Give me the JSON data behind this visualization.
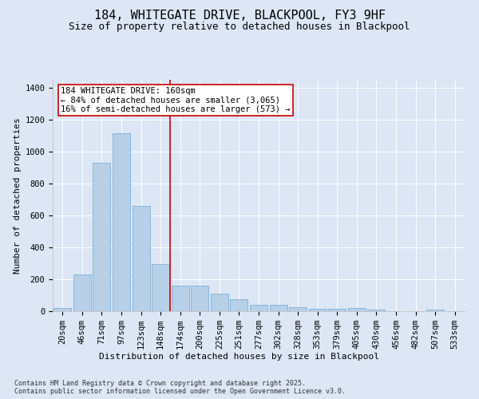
{
  "title": "184, WHITEGATE DRIVE, BLACKPOOL, FY3 9HF",
  "subtitle": "Size of property relative to detached houses in Blackpool",
  "xlabel": "Distribution of detached houses by size in Blackpool",
  "ylabel": "Number of detached properties",
  "categories": [
    "20sqm",
    "46sqm",
    "71sqm",
    "97sqm",
    "123sqm",
    "148sqm",
    "174sqm",
    "200sqm",
    "225sqm",
    "251sqm",
    "277sqm",
    "302sqm",
    "328sqm",
    "353sqm",
    "379sqm",
    "405sqm",
    "430sqm",
    "456sqm",
    "482sqm",
    "507sqm",
    "533sqm"
  ],
  "values": [
    18,
    230,
    930,
    1115,
    660,
    295,
    160,
    158,
    110,
    75,
    42,
    42,
    26,
    15,
    14,
    22,
    10,
    0,
    0,
    8,
    0
  ],
  "bar_color": "#b8cfe8",
  "bar_edge_color": "#6fa8d0",
  "vline_x_index": 5.5,
  "vline_color": "#cc0000",
  "annotation_text": "184 WHITEGATE DRIVE: 160sqm\n← 84% of detached houses are smaller (3,065)\n16% of semi-detached houses are larger (573) →",
  "annotation_box_color": "#ffffff",
  "annotation_box_edge_color": "#cc0000",
  "ylim": [
    0,
    1450
  ],
  "yticks": [
    0,
    200,
    400,
    600,
    800,
    1000,
    1200,
    1400
  ],
  "bg_color": "#dce6f5",
  "grid_color": "#ffffff",
  "footer": "Contains HM Land Registry data © Crown copyright and database right 2025.\nContains public sector information licensed under the Open Government Licence v3.0.",
  "title_fontsize": 11,
  "subtitle_fontsize": 9,
  "xlabel_fontsize": 8,
  "ylabel_fontsize": 8,
  "tick_fontsize": 7.5,
  "annotation_fontsize": 7.5,
  "footer_fontsize": 6
}
